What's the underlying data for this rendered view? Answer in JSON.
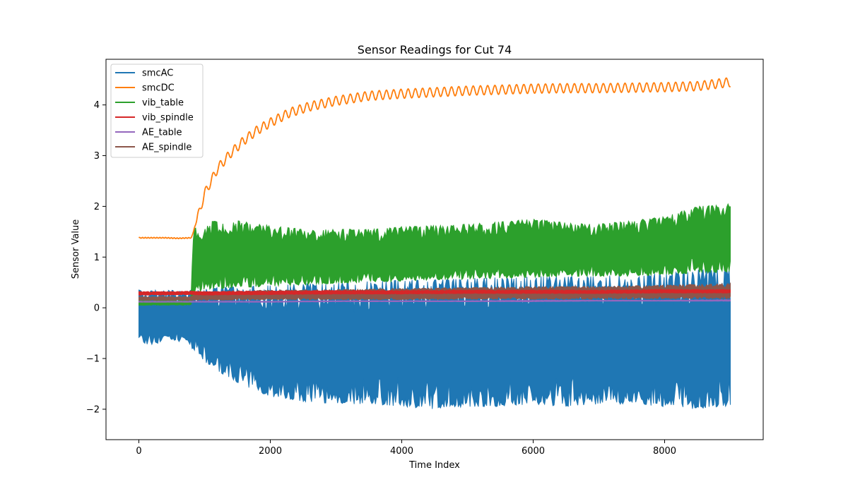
{
  "chart_data": {
    "type": "line",
    "title": "Sensor Readings for Cut 74",
    "xlabel": "Time Index",
    "ylabel": "Sensor Value",
    "xlim": [
      -500,
      9500
    ],
    "ylim": [
      -2.6,
      4.9
    ],
    "xticks": [
      0,
      2000,
      4000,
      6000,
      8000
    ],
    "yticks": [
      -2,
      -1,
      0,
      1,
      2,
      3,
      4
    ],
    "ytick_labels": [
      "−2",
      "−1",
      "0",
      "1",
      "2",
      "3",
      "4"
    ],
    "grid": false,
    "legend_position": "top-left",
    "series": [
      {
        "name": "smcAC",
        "color": "#1f77b4",
        "style": "band",
        "x": [
          0,
          150,
          300,
          450,
          600,
          700,
          800,
          900,
          1000,
          1200,
          1400,
          1600,
          1800,
          2000,
          2500,
          3000,
          3500,
          4000,
          4500,
          5000,
          5500,
          6000,
          6500,
          7000,
          7500,
          8000,
          8500,
          9000
        ],
        "upper": [
          0.35,
          0.38,
          0.33,
          0.36,
          0.32,
          0.33,
          0.35,
          0.36,
          0.38,
          0.4,
          0.42,
          0.42,
          0.44,
          0.45,
          0.47,
          0.5,
          0.52,
          0.55,
          0.55,
          0.58,
          0.6,
          0.62,
          0.62,
          0.63,
          0.65,
          0.68,
          0.75,
          0.78
        ],
        "lower": [
          -0.65,
          -0.75,
          -0.7,
          -0.62,
          -0.68,
          -0.6,
          -0.8,
          -0.9,
          -1.1,
          -1.25,
          -1.4,
          -1.55,
          -1.65,
          -1.75,
          -1.85,
          -1.9,
          -1.9,
          -1.95,
          -2.0,
          -1.95,
          -1.95,
          -1.9,
          -1.95,
          -1.9,
          -1.9,
          -1.95,
          -2.0,
          -1.95
        ]
      },
      {
        "name": "smcDC",
        "color": "#ff7f0e",
        "style": "line",
        "x": [
          0,
          200,
          400,
          600,
          800,
          900,
          1000,
          1200,
          1400,
          1600,
          1800,
          2000,
          2300,
          2600,
          3000,
          3500,
          4000,
          4500,
          5000,
          5500,
          6000,
          6500,
          7000,
          7500,
          8000,
          8500,
          9000
        ],
        "y": [
          1.38,
          1.38,
          1.38,
          1.37,
          1.38,
          1.8,
          2.25,
          2.75,
          3.05,
          3.3,
          3.5,
          3.65,
          3.85,
          3.97,
          4.08,
          4.18,
          4.22,
          4.25,
          4.28,
          4.3,
          4.32,
          4.33,
          4.33,
          4.34,
          4.35,
          4.37,
          4.45
        ],
        "ripple": 0.09
      },
      {
        "name": "vib_table",
        "color": "#2ca02c",
        "style": "band",
        "x": [
          0,
          400,
          800,
          820,
          1000,
          1500,
          2000,
          2500,
          3000,
          3500,
          4000,
          4500,
          5000,
          5500,
          6000,
          6500,
          7000,
          7500,
          8000,
          8500,
          9000
        ],
        "upper": [
          0.15,
          0.15,
          0.15,
          1.55,
          1.7,
          1.72,
          1.62,
          1.55,
          1.55,
          1.55,
          1.6,
          1.62,
          1.65,
          1.7,
          1.75,
          1.68,
          1.65,
          1.72,
          1.8,
          2.0,
          2.05
        ],
        "lower": [
          0.05,
          0.05,
          0.05,
          0.25,
          0.35,
          0.4,
          0.42,
          0.45,
          0.48,
          0.5,
          0.52,
          0.55,
          0.55,
          0.58,
          0.6,
          0.62,
          0.62,
          0.62,
          0.65,
          0.68,
          0.7
        ]
      },
      {
        "name": "vib_spindle",
        "color": "#d62728",
        "style": "band",
        "x": [
          0,
          400,
          800,
          1000,
          2000,
          3000,
          4000,
          5000,
          6000,
          7000,
          8000,
          9000
        ],
        "upper": [
          0.32,
          0.32,
          0.33,
          0.32,
          0.33,
          0.34,
          0.34,
          0.35,
          0.35,
          0.35,
          0.36,
          0.36
        ],
        "lower": [
          0.25,
          0.25,
          0.26,
          0.25,
          0.26,
          0.27,
          0.27,
          0.28,
          0.28,
          0.28,
          0.29,
          0.29
        ]
      },
      {
        "name": "AE_table",
        "color": "#9467bd",
        "style": "band",
        "x": [
          0,
          1000,
          2000,
          3000,
          4000,
          5000,
          6000,
          7000,
          8000,
          9000
        ],
        "upper": [
          0.13,
          0.13,
          0.13,
          0.14,
          0.14,
          0.14,
          0.15,
          0.15,
          0.15,
          0.16
        ],
        "lower": [
          0.11,
          0.11,
          0.11,
          0.12,
          0.12,
          0.12,
          0.12,
          0.13,
          0.13,
          0.13
        ]
      },
      {
        "name": "AE_spindle",
        "color": "#8c564b",
        "style": "band",
        "x": [
          0,
          800,
          850,
          1000,
          2000,
          3000,
          4000,
          5000,
          6000,
          7000,
          8000,
          9000
        ],
        "upper": [
          0.22,
          0.22,
          0.3,
          0.32,
          0.35,
          0.36,
          0.38,
          0.4,
          0.42,
          0.42,
          0.45,
          0.48
        ],
        "lower": [
          0.15,
          0.15,
          0.15,
          0.15,
          0.16,
          0.16,
          0.16,
          0.17,
          0.17,
          0.17,
          0.18,
          0.18
        ]
      }
    ]
  }
}
